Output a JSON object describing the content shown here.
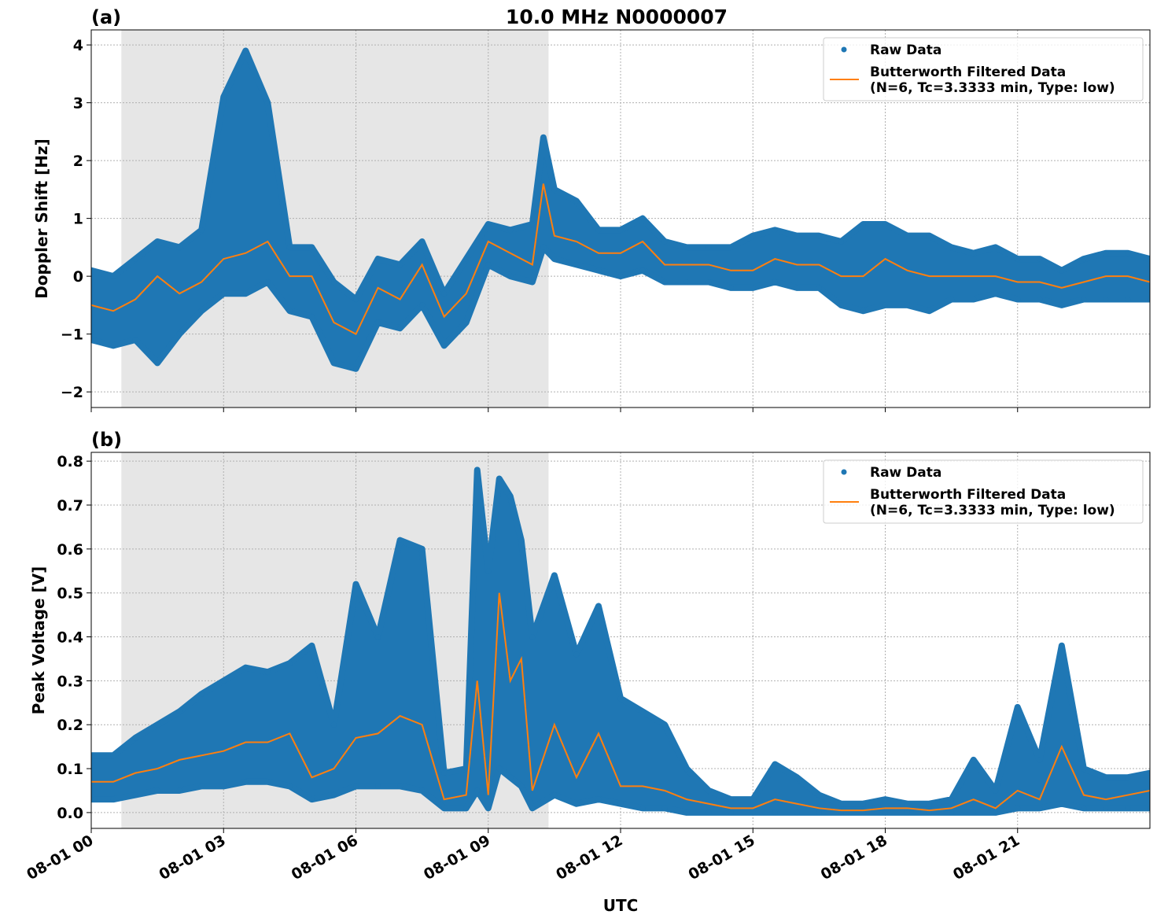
{
  "title": "10.0 MHz N0000007",
  "xlabel": "UTC",
  "x_tick_labels": [
    "08-01 00",
    "08-01 03",
    "08-01 06",
    "08-01 09",
    "08-01 12",
    "08-01 15",
    "08-01 18",
    "08-01 21"
  ],
  "colors": {
    "raw": "#1f77b4",
    "filtered": "#ff7f0e",
    "shade": "#e6e6e6",
    "grid": "#b0b0b0"
  },
  "chart_data": [
    {
      "type": "scatter",
      "panel_label": "(a)",
      "ylabel": "Doppler Shift [Hz]",
      "xlim": [
        "00:00",
        "24:00"
      ],
      "ylim": [
        -2.27,
        4.26
      ],
      "yticks": [
        -2,
        -1,
        0,
        1,
        2,
        3,
        4
      ],
      "ytick_labels": [
        "−2",
        "−1",
        "0",
        "1",
        "2",
        "3",
        "4"
      ],
      "grid": true,
      "shaded_interval": [
        "00:41",
        "10:22"
      ],
      "legend": {
        "placement": "top-right",
        "entries": [
          "Raw Data",
          "Butterworth Filtered Data",
          "(N=6, Tc=3.3333 min, Type: low)"
        ]
      },
      "series": [
        {
          "name": "Raw Data",
          "kind": "scatter",
          "t": [
            "00:00",
            "00:30",
            "01:00",
            "01:30",
            "02:00",
            "02:30",
            "03:00",
            "03:30",
            "04:00",
            "04:30",
            "05:00",
            "05:30",
            "06:00",
            "06:30",
            "07:00",
            "07:30",
            "08:00",
            "08:30",
            "09:00",
            "09:30",
            "10:00",
            "10:15",
            "10:30",
            "11:00",
            "11:30",
            "12:00",
            "12:30",
            "13:00",
            "13:30",
            "14:00",
            "14:30",
            "15:00",
            "15:30",
            "16:00",
            "16:30",
            "17:00",
            "17:30",
            "18:00",
            "18:30",
            "19:00",
            "19:30",
            "20:00",
            "20:30",
            "21:00",
            "21:30",
            "22:00",
            "22:30",
            "23:00",
            "23:30",
            "24:00"
          ],
          "min": [
            -1.1,
            -1.2,
            -1.1,
            -1.5,
            -1.0,
            -0.6,
            -0.3,
            -0.3,
            -0.1,
            -0.6,
            -0.7,
            -1.5,
            -1.6,
            -0.8,
            -0.9,
            -0.5,
            -1.2,
            -0.8,
            0.2,
            0.0,
            -0.1,
            0.5,
            0.3,
            0.2,
            0.1,
            0.0,
            0.1,
            -0.1,
            -0.1,
            -0.1,
            -0.2,
            -0.2,
            -0.1,
            -0.2,
            -0.2,
            -0.5,
            -0.6,
            -0.5,
            -0.5,
            -0.6,
            -0.4,
            -0.4,
            -0.3,
            -0.4,
            -0.4,
            -0.5,
            -0.4,
            -0.4,
            -0.4,
            -0.4
          ],
          "max": [
            0.1,
            0.0,
            0.3,
            0.6,
            0.5,
            0.8,
            3.1,
            3.9,
            3.0,
            0.5,
            0.5,
            -0.1,
            -0.4,
            0.3,
            0.2,
            0.6,
            -0.3,
            0.3,
            0.9,
            0.8,
            0.9,
            2.4,
            1.5,
            1.3,
            0.8,
            0.8,
            1.0,
            0.6,
            0.5,
            0.5,
            0.5,
            0.7,
            0.8,
            0.7,
            0.7,
            0.6,
            0.9,
            0.9,
            0.7,
            0.7,
            0.5,
            0.4,
            0.5,
            0.3,
            0.3,
            0.1,
            0.3,
            0.4,
            0.4,
            0.3
          ]
        },
        {
          "name": "Butterworth Filtered Data",
          "kind": "line",
          "values": [
            -0.5,
            -0.6,
            -0.4,
            0.0,
            -0.3,
            -0.1,
            0.3,
            0.4,
            0.6,
            0.0,
            0.0,
            -0.8,
            -1.0,
            -0.2,
            -0.4,
            0.2,
            -0.7,
            -0.3,
            0.6,
            0.4,
            0.2,
            1.6,
            0.7,
            0.6,
            0.4,
            0.4,
            0.6,
            0.2,
            0.2,
            0.2,
            0.1,
            0.1,
            0.3,
            0.2,
            0.2,
            0.0,
            0.0,
            0.3,
            0.1,
            0.0,
            0.0,
            0.0,
            0.0,
            -0.1,
            -0.1,
            -0.2,
            -0.1,
            0.0,
            0.0,
            -0.1
          ]
        }
      ]
    },
    {
      "type": "scatter",
      "panel_label": "(b)",
      "ylabel": "Peak Voltage [V]",
      "xlim": [
        "00:00",
        "24:00"
      ],
      "ylim": [
        -0.036,
        0.82
      ],
      "yticks": [
        0,
        0.1,
        0.2,
        0.3,
        0.4,
        0.5,
        0.6,
        0.7,
        0.8
      ],
      "ytick_labels": [
        "0.0",
        "0.1",
        "0.2",
        "0.3",
        "0.4",
        "0.5",
        "0.6",
        "0.7",
        "0.8"
      ],
      "grid": true,
      "shaded_interval": [
        "00:41",
        "10:22"
      ],
      "legend": {
        "placement": "top-right",
        "entries": [
          "Raw Data",
          "Butterworth Filtered Data",
          "(N=6, Tc=3.3333 min, Type: low)"
        ]
      },
      "series": [
        {
          "name": "Raw Data",
          "kind": "scatter",
          "t": [
            "00:00",
            "00:30",
            "01:00",
            "01:30",
            "02:00",
            "02:30",
            "03:00",
            "03:30",
            "04:00",
            "04:30",
            "05:00",
            "05:30",
            "06:00",
            "06:30",
            "07:00",
            "07:30",
            "08:00",
            "08:30",
            "08:45",
            "09:00",
            "09:15",
            "09:30",
            "09:45",
            "10:00",
            "10:30",
            "11:00",
            "11:30",
            "12:00",
            "12:30",
            "13:00",
            "13:30",
            "14:00",
            "14:30",
            "15:00",
            "15:30",
            "16:00",
            "16:30",
            "17:00",
            "17:30",
            "18:00",
            "18:30",
            "19:00",
            "19:30",
            "20:00",
            "20:30",
            "21:00",
            "21:30",
            "22:00",
            "22:30",
            "23:00",
            "23:30",
            "24:00"
          ],
          "min": [
            0.03,
            0.03,
            0.04,
            0.05,
            0.05,
            0.06,
            0.06,
            0.07,
            0.07,
            0.06,
            0.03,
            0.04,
            0.06,
            0.06,
            0.06,
            0.05,
            0.01,
            0.01,
            0.05,
            0.01,
            0.1,
            0.08,
            0.06,
            0.01,
            0.04,
            0.02,
            0.03,
            0.02,
            0.01,
            0.01,
            0.0,
            0.0,
            0.0,
            0.0,
            0.0,
            0.0,
            0.0,
            0.0,
            0.0,
            0.0,
            0.0,
            0.0,
            0.0,
            0.0,
            0.0,
            0.01,
            0.01,
            0.02,
            0.01,
            0.01,
            0.01,
            0.01
          ],
          "max": [
            0.13,
            0.13,
            0.17,
            0.2,
            0.23,
            0.27,
            0.3,
            0.33,
            0.32,
            0.34,
            0.38,
            0.2,
            0.52,
            0.4,
            0.62,
            0.6,
            0.09,
            0.1,
            0.78,
            0.55,
            0.76,
            0.72,
            0.62,
            0.4,
            0.54,
            0.36,
            0.47,
            0.26,
            0.23,
            0.2,
            0.1,
            0.05,
            0.03,
            0.03,
            0.11,
            0.08,
            0.04,
            0.02,
            0.02,
            0.03,
            0.02,
            0.02,
            0.03,
            0.12,
            0.05,
            0.24,
            0.12,
            0.38,
            0.1,
            0.08,
            0.08,
            0.09
          ]
        },
        {
          "name": "Butterworth Filtered Data",
          "kind": "line",
          "values": [
            0.07,
            0.07,
            0.09,
            0.1,
            0.12,
            0.13,
            0.14,
            0.16,
            0.16,
            0.18,
            0.08,
            0.1,
            0.17,
            0.18,
            0.22,
            0.2,
            0.03,
            0.04,
            0.3,
            0.04,
            0.5,
            0.3,
            0.35,
            0.05,
            0.2,
            0.08,
            0.18,
            0.06,
            0.06,
            0.05,
            0.03,
            0.02,
            0.01,
            0.01,
            0.03,
            0.02,
            0.01,
            0.005,
            0.005,
            0.01,
            0.01,
            0.005,
            0.01,
            0.03,
            0.01,
            0.05,
            0.03,
            0.15,
            0.04,
            0.03,
            0.04,
            0.05
          ]
        }
      ]
    }
  ]
}
